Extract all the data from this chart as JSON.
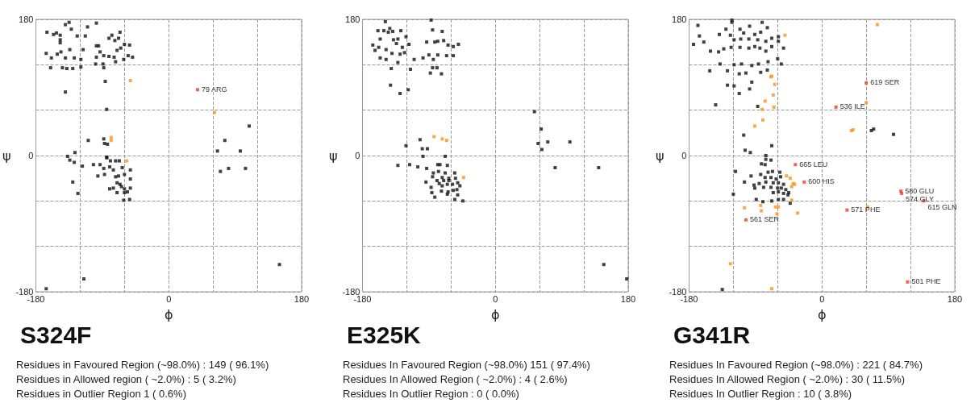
{
  "chart_data": [
    {
      "type": "scatter",
      "title": "S324F",
      "xlabel": "ϕ",
      "ylabel": "ψ",
      "xlim": [
        -180,
        180
      ],
      "ylim": [
        -180,
        180
      ],
      "xticks": [
        -180,
        {
          "value": -120,
          "label": null
        },
        {
          "value": -60,
          "label": null
        },
        0,
        {
          "value": 60,
          "label": null
        },
        {
          "value": 120,
          "label": null
        },
        180
      ],
      "yticks": [
        -180,
        {
          "value": -120,
          "label": null
        },
        {
          "value": -60,
          "label": null
        },
        0,
        {
          "value": 60,
          "label": null
        },
        {
          "value": 120,
          "label": null
        },
        180
      ],
      "grid": true,
      "marker": "square",
      "series": [
        {
          "color": "#111111",
          "x": [
            -135,
            -140,
            -110,
            -98,
            -132,
            -165,
            -156,
            -152,
            -147,
            -124,
            -113,
            -77,
            -66,
            -81,
            -73,
            -68,
            -147,
            -147,
            -134,
            -116,
            -98,
            -95,
            -93,
            -70,
            -65,
            -60,
            -53,
            -166,
            -159,
            -151,
            -146,
            -140,
            -128,
            -119,
            -98,
            -88,
            -81,
            -74,
            -72,
            -61,
            -55,
            -49,
            -160,
            -144,
            -138,
            -130,
            -119,
            -99,
            -89,
            -88,
            -86,
            -140,
            -84,
            -109,
            -88,
            -87,
            -83,
            -127,
            -137,
            -134,
            -128,
            -117,
            -102,
            -93,
            -84,
            -84,
            -79,
            -72,
            -67,
            -88,
            -80,
            -75,
            -63,
            -52,
            -96,
            -87,
            -72,
            -68,
            -60,
            -52,
            -130,
            -70,
            -66,
            -64,
            -60,
            -52,
            -80,
            -75,
            -123,
            -70,
            -60,
            -56,
            -61,
            -53,
            -115,
            -166,
            66,
            76,
            97,
            109,
            70,
            81,
            104,
            150
          ],
          "values": [
            176,
            173,
            170,
            175,
            167,
            163,
            160,
            162,
            159,
            158,
            158,
            159,
            163,
            155,
            152,
            155,
            153,
            149,
            140,
            140,
            145,
            145,
            137,
            139,
            142,
            147,
            146,
            135,
            129,
            134,
            137,
            129,
            129,
            127,
            130,
            132,
            131,
            130,
            124,
            127,
            132,
            130,
            116,
            116,
            115,
            115,
            117,
            121,
            121,
            116,
            98,
            84,
            61,
            20,
            22,
            16,
            15,
            4,
            -1,
            -6,
            -9,
            -14,
            -12,
            -12,
            -3,
            -2,
            -7,
            -7,
            -7,
            -17,
            -15,
            -19,
            -16,
            -19,
            -27,
            -25,
            -28,
            -27,
            -25,
            -31,
            -35,
            -36,
            -38,
            -41,
            -44,
            -43,
            -44,
            -43,
            -50,
            -49,
            -49,
            -48,
            -59,
            -58,
            -163,
            -176,
            6,
            20,
            6,
            39,
            -21,
            -17,
            -17,
            -144
          ]
        },
        {
          "color": "#f7941d",
          "x": [
            -52,
            -78,
            -78,
            -57,
            62
          ],
          "values": [
            99,
            24,
            20,
            -7,
            57
          ]
        },
        {
          "color": "#e8402a",
          "x": [
            39
          ],
          "values": [
            87
          ]
        }
      ],
      "annotations": [
        {
          "text": "79 ARG",
          "x": 39,
          "y": 87
        },
        "Residues in Favoured Region (~98.0%) : 149 ( 96.1%)",
        "Residues in Allowed region ( ~2.0%) : 5 ( 3.2%)",
        "Residues in Outlier Region 1 ( 0.6%)"
      ]
    },
    {
      "type": "scatter",
      "title": "E325K",
      "xlabel": "ϕ",
      "ylabel": "ψ",
      "xlim": [
        -180,
        180
      ],
      "ylim": [
        -180,
        180
      ],
      "xticks": [
        -180,
        {
          "value": -120,
          "label": null
        },
        {
          "value": -60,
          "label": null
        },
        0,
        {
          "value": 60,
          "label": null
        },
        {
          "value": 120,
          "label": null
        },
        180
      ],
      "yticks": [
        -180,
        {
          "value": -120,
          "label": null
        },
        {
          "value": -60,
          "label": null
        },
        0,
        {
          "value": 60,
          "label": null
        },
        {
          "value": 120,
          "label": null
        },
        180
      ],
      "grid": true,
      "marker": "square",
      "series": [
        {
          "color": "#111111",
          "x": [
            -149,
            -87,
            -159,
            -151,
            -143,
            -145,
            -139,
            -128,
            -85,
            -72,
            -156,
            -138,
            -132,
            -121,
            -166,
            -158,
            -148,
            -134,
            -126,
            -117,
            -93,
            -82,
            -78,
            -70,
            -64,
            -57,
            -50,
            -163,
            -156,
            -148,
            -140,
            -129,
            -123,
            -110,
            -98,
            -90,
            -84,
            -78,
            -66,
            -57,
            -141,
            -132,
            -115,
            -88,
            -85,
            -79,
            -73,
            -142,
            -129,
            -118,
            -121,
            -102,
            -99,
            -92,
            -98,
            -68,
            -132,
            -116,
            -105,
            -93,
            -78,
            -75,
            -65,
            -84,
            -77,
            -68,
            -55,
            -85,
            -72,
            -63,
            -54,
            -94,
            -79,
            -70,
            -63,
            -76,
            -87,
            -72,
            -65,
            -58,
            -51,
            -48,
            -86,
            -73,
            -64,
            -57,
            -52,
            -82,
            -65,
            -55,
            -44,
            -51,
            53,
            62,
            58,
            71,
            63,
            101,
            81,
            140,
            147,
            178
          ],
          "values": [
            177,
            179,
            165,
            165,
            168,
            163,
            164,
            165,
            166,
            164,
            154,
            153,
            154,
            157,
            146,
            143,
            140,
            148,
            143,
            147,
            150,
            150,
            151,
            152,
            146,
            144,
            147,
            139,
            129,
            127,
            135,
            134,
            136,
            127,
            129,
            133,
            127,
            133,
            132,
            132,
            115,
            123,
            114,
            109,
            116,
            116,
            108,
            93,
            82,
            87,
            13,
            21,
            9,
            9,
            -1,
            -1,
            -13,
            -12,
            -15,
            -17,
            -12,
            -12,
            -13,
            -23,
            -21,
            -23,
            -23,
            -28,
            -29,
            -30,
            -30,
            -35,
            -33,
            -33,
            -33,
            -37,
            -42,
            -40,
            -38,
            -38,
            -36,
            -40,
            -49,
            -47,
            -48,
            -46,
            -45,
            -55,
            -51,
            -58,
            -60,
            -52,
            58,
            35,
            16,
            18,
            8,
            18,
            -16,
            -16,
            -144,
            -163
          ]
        },
        {
          "color": "#f7941d",
          "x": [
            -83,
            -72,
            -66,
            -43
          ],
          "values": [
            25,
            22,
            20,
            -29
          ]
        }
      ],
      "annotations": [
        "Residues In Favoured Region (~98.0%) 151 ( 97.4%)",
        "Residues In Allowed Region ( ~2.0%) : 4 ( 2.6%)",
        "Residues In Outlier Region : 0 ( 0.0%)"
      ]
    },
    {
      "type": "scatter",
      "title": "G341R",
      "xlabel": "ϕ",
      "ylabel": "ψ",
      "xlim": [
        -180,
        180
      ],
      "ylim": [
        -180,
        180
      ],
      "xticks": [
        -180,
        {
          "value": -120,
          "label": null
        },
        {
          "value": -60,
          "label": null
        },
        0,
        {
          "value": 60,
          "label": null
        },
        {
          "value": 120,
          "label": null
        },
        180
      ],
      "yticks": [
        -180,
        {
          "value": -120,
          "label": null
        },
        {
          "value": -60,
          "label": null
        },
        0,
        {
          "value": 60,
          "label": null
        },
        {
          "value": 120,
          "label": null
        },
        180
      ],
      "grid": true,
      "marker": "square",
      "series": [
        {
          "color": "#111111",
          "x": [
            -122,
            -122,
            -168,
            -98,
            -81,
            -74,
            -130,
            -111,
            -106,
            -91,
            -83,
            -166,
            -160,
            -139,
            -124,
            -119,
            -110,
            -99,
            -87,
            -76,
            -68,
            -59,
            -174,
            -151,
            -140,
            -133,
            -123,
            -111,
            -99,
            -91,
            -84,
            -76,
            -68,
            -59,
            -52,
            -138,
            -119,
            -109,
            -95,
            -86,
            -73,
            -60,
            -55,
            -152,
            -128,
            -112,
            -103,
            -95,
            -83,
            -74,
            -128,
            -119,
            -112,
            -98,
            -144,
            -87,
            -106,
            -104,
            -97,
            -68,
            -76,
            -76,
            -69,
            -82,
            -77,
            -117,
            -83,
            -73,
            -67,
            -57,
            -96,
            -77,
            -69,
            -62,
            -56,
            -105,
            -92,
            -85,
            -76,
            -66,
            -59,
            -52,
            -91,
            -79,
            -69,
            -60,
            -55,
            -49,
            -45,
            -120,
            -66,
            -59,
            -52,
            -46,
            -89,
            -80,
            -68,
            -59,
            -52,
            -43,
            -135,
            67,
            70,
            97
          ],
          "values": [
            179,
            176,
            172,
            171,
            176,
            169,
            167,
            167,
            162,
            160,
            163,
            158,
            150,
            160,
            159,
            153,
            154,
            154,
            153,
            151,
            155,
            157,
            147,
            138,
            137,
            141,
            143,
            143,
            142,
            144,
            142,
            138,
            144,
            151,
            142,
            121,
            120,
            121,
            119,
            121,
            124,
            128,
            121,
            112,
            112,
            108,
            109,
            97,
            110,
            113,
            93,
            92,
            82,
            88,
            67,
            65,
            27,
            7,
            4,
            13,
            0,
            -5,
            -6,
            -11,
            -12,
            -21,
            -25,
            -22,
            -21,
            -22,
            -27,
            -29,
            -29,
            -31,
            -28,
            -35,
            -39,
            -37,
            -35,
            -36,
            -36,
            -38,
            -43,
            -42,
            -42,
            -43,
            -43,
            -45,
            -49,
            -51,
            -49,
            -48,
            -50,
            -52,
            -58,
            -61,
            -60,
            -58,
            -58,
            -63,
            -177,
            33,
            35,
            28
          ]
        },
        {
          "color": "#f7941d",
          "x": [
            -50,
            -69,
            -68,
            -64,
            -66,
            -77,
            -81,
            -65,
            -80,
            -91,
            -43,
            -39,
            -37,
            -41,
            -41,
            -83,
            -63,
            -59,
            -105,
            -82,
            -61,
            -33,
            -124,
            -68,
            75,
            60,
            40,
            42,
            62,
            -48
          ],
          "values": [
            159,
            104,
            105,
            94,
            80,
            72,
            61,
            64,
            47,
            39,
            -30,
            -37,
            -38,
            -41,
            -59,
            -66,
            -68,
            -68,
            -69,
            -73,
            -77,
            -76,
            -143,
            -176,
            173,
            70,
            33,
            34,
            -68,
            -27
          ]
        },
        {
          "color": "#e8402a",
          "x": [
            60,
            19,
            -36,
            -24,
            -103,
            34,
            107,
            108,
            138,
            116
          ],
          "values": [
            96,
            64,
            -12,
            -35,
            -85,
            -72,
            -47,
            -50,
            -60,
            -167
          ]
        }
      ],
      "annotations": [
        {
          "text": "619 SER",
          "x": 60,
          "y": 96
        },
        {
          "text": "536 ILE",
          "x": 19,
          "y": 64
        },
        {
          "text": "665 LEU",
          "x": -36,
          "y": -12
        },
        {
          "text": "600 HIS",
          "x": -24,
          "y": -35
        },
        {
          "text": "561 SER",
          "x": -103,
          "y": -85
        },
        {
          "text": "571 PHE",
          "x": 34,
          "y": -72
        },
        {
          "text": "580 GLU",
          "x": 107,
          "y": -47
        },
        {
          "text": "574 GLY",
          "x": 108,
          "y": -50
        },
        {
          "text": "615 GLN",
          "x": 138,
          "y": -60
        },
        {
          "text": "501 PHE",
          "x": 116,
          "y": -167
        },
        "Residues In Favoured Region (~98.0%) : 221 ( 84.7%)",
        "Residues In Allowed Region ( ~2.0%) : 30 ( 11.5%)",
        "Residues In Outlier Region : 10 ( 3.8%)"
      ]
    }
  ]
}
